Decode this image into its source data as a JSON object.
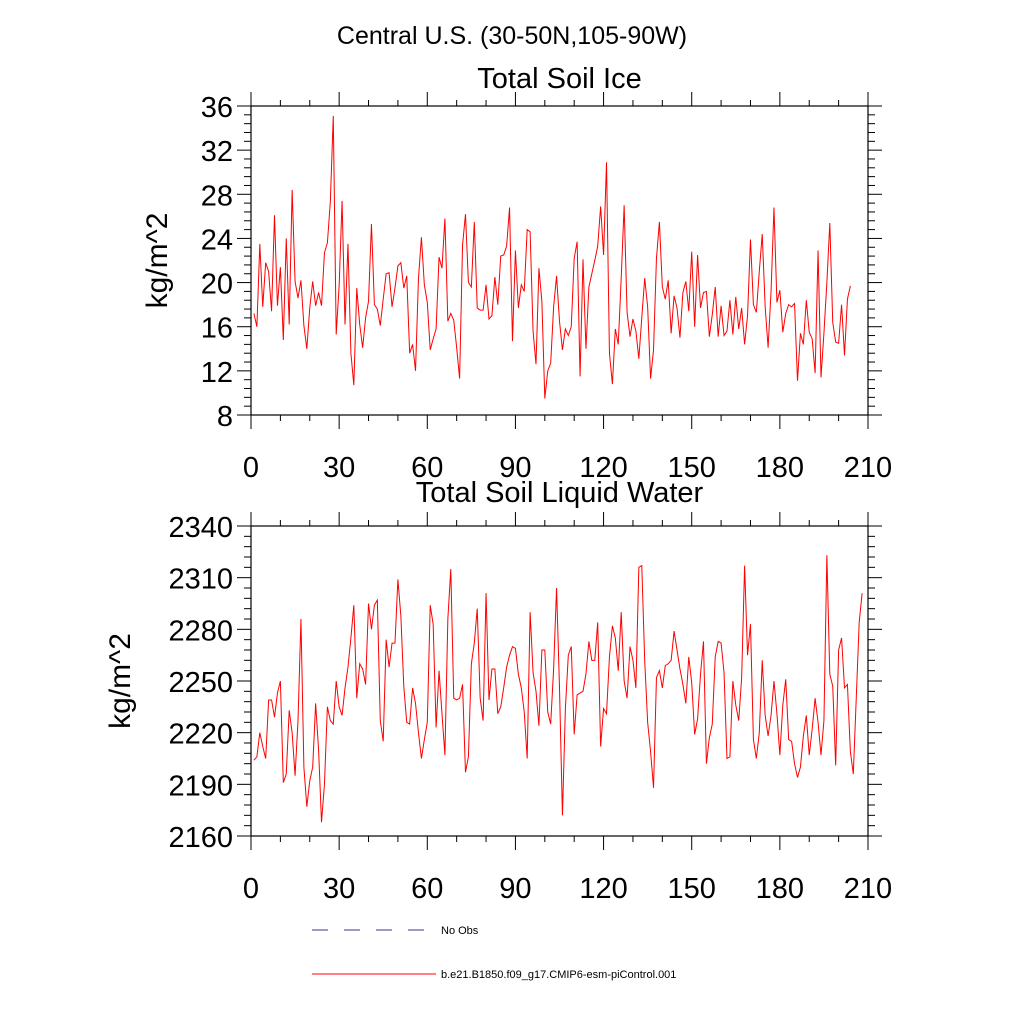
{
  "figure": {
    "suptitle": "Central U.S. (30-50N,105-90W)"
  },
  "chart_data": [
    {
      "type": "line",
      "title": "Total Soil Ice",
      "xlabel": "",
      "ylabel": "kg/m^2",
      "xlim": [
        0,
        210
      ],
      "ylim": [
        8,
        36
      ],
      "xticks": [
        0,
        30,
        60,
        90,
        120,
        150,
        180,
        210
      ],
      "yticks": [
        8,
        12,
        16,
        20,
        24,
        28,
        32,
        36
      ],
      "xtick_labels": [
        "0",
        "30",
        "60",
        "90",
        "120",
        "150",
        "180",
        "210"
      ],
      "ytick_labels": [
        "8",
        "12",
        "16",
        "20",
        "24",
        "28",
        "32",
        "36"
      ],
      "grid": false,
      "color": "#ff0000",
      "x_start": 1,
      "values": [
        17.2,
        16,
        23.5,
        17.8,
        21.8,
        21,
        17.4,
        26.1,
        17.9,
        21.4,
        14.8,
        24,
        16.2,
        28.4,
        20.1,
        18.6,
        20.2,
        16.1,
        14,
        17.7,
        20.1,
        17.9,
        19.1,
        17.9,
        22.7,
        23.6,
        27.3,
        35.1,
        15.3,
        19.7,
        27.4,
        16.2,
        23.5,
        13.6,
        10.7,
        19.5,
        16.2,
        14.1,
        16.8,
        18.3,
        25.3,
        18,
        17.6,
        16.1,
        18.5,
        20.8,
        20.9,
        17.8,
        19.5,
        21.5,
        21.8,
        19.5,
        20.6,
        13.6,
        14.4,
        12,
        20.4,
        24.1,
        19.8,
        18.2,
        13.9,
        14.9,
        15.8,
        22.3,
        21.3,
        25.8,
        16.5,
        17.2,
        16.6,
        14.1,
        11.3,
        23.4,
        26.2,
        20,
        19.6,
        25.5,
        17.7,
        17.5,
        17.5,
        19.8,
        16.7,
        17,
        20.5,
        18,
        22.4,
        22.5,
        23.3,
        26.8,
        14.7,
        22.9,
        17.7,
        19.8,
        19.2,
        24.8,
        24.6,
        15.6,
        12.6,
        21.3,
        18.3,
        9.5,
        12,
        12.7,
        17.8,
        20.6,
        16.5,
        13.9,
        15.8,
        15.2,
        16,
        22.2,
        23.7,
        11.5,
        22.1,
        14,
        19.6,
        20.8,
        22,
        23.3,
        26.9,
        22.5,
        30.9,
        13.6,
        10.8,
        15.8,
        14.4,
        20.4,
        27,
        17.3,
        15.1,
        16.7,
        15.6,
        13.1,
        16.8,
        20.4,
        17.8,
        11.3,
        13.9,
        22.2,
        25.5,
        19.6,
        18.5,
        20.2,
        15.4,
        18.8,
        17.7,
        15,
        19.1,
        20.1,
        17.4,
        22.8,
        16,
        22.5,
        17.7,
        19.1,
        19.2,
        15.1,
        17.1,
        19.6,
        15.1,
        17.9,
        15.2,
        15.6,
        18.4,
        15.3,
        18.7,
        15.8,
        17.7,
        14.4,
        17,
        23.9,
        18,
        17.3,
        21,
        24.4,
        17.8,
        14.1,
        19.2,
        26.8,
        18.2,
        19.3,
        15.5,
        17.2,
        18,
        17.8,
        18.1,
        11.1,
        15.4,
        14.4,
        18.4,
        15.5,
        14.9,
        11.8,
        22.9,
        11.4,
        15.4,
        20,
        25.4,
        16.4,
        14.6,
        14.5,
        18,
        13.4,
        18.5,
        19.7
      ]
    },
    {
      "type": "line",
      "title": "Total Soil Liquid Water",
      "xlabel": "",
      "ylabel": "kg/m^2",
      "xlim": [
        0,
        210
      ],
      "ylim": [
        2160,
        2340
      ],
      "xticks": [
        0,
        30,
        60,
        90,
        120,
        150,
        180,
        210
      ],
      "yticks": [
        2160,
        2190,
        2220,
        2250,
        2280,
        2310,
        2340
      ],
      "xtick_labels": [
        "0",
        "30",
        "60",
        "90",
        "120",
        "150",
        "180",
        "210"
      ],
      "ytick_labels": [
        "2160",
        "2190",
        "2220",
        "2250",
        "2280",
        "2310",
        "2340"
      ],
      "grid": false,
      "color": "#ff0000",
      "x_start": 1,
      "values": [
        2204,
        2206,
        2220,
        2212,
        2205,
        2239,
        2239,
        2229,
        2243,
        2250,
        2191,
        2196,
        2233,
        2220,
        2195,
        2227,
        2286,
        2200,
        2177,
        2192,
        2200,
        2237,
        2210,
        2168,
        2190,
        2235,
        2227,
        2225,
        2250,
        2235,
        2230,
        2246,
        2258,
        2275,
        2294,
        2240,
        2260,
        2257,
        2248,
        2295,
        2280,
        2294,
        2297,
        2227,
        2215,
        2274,
        2258,
        2272,
        2272,
        2309,
        2288,
        2247,
        2226,
        2225,
        2246,
        2237,
        2220,
        2205,
        2216,
        2226,
        2294,
        2283,
        2223,
        2256,
        2231,
        2207,
        2286,
        2315,
        2240,
        2239,
        2240,
        2248,
        2197,
        2206,
        2260,
        2272,
        2292,
        2240,
        2227,
        2301,
        2239,
        2257,
        2257,
        2231,
        2235,
        2246,
        2258,
        2265,
        2270,
        2269,
        2254,
        2246,
        2232,
        2205,
        2290,
        2255,
        2244,
        2224,
        2268,
        2268,
        2232,
        2225,
        2257,
        2304,
        2246,
        2172,
        2234,
        2265,
        2270,
        2219,
        2242,
        2243,
        2244,
        2254,
        2273,
        2262,
        2262,
        2284,
        2212,
        2234,
        2231,
        2264,
        2282,
        2275,
        2256,
        2290,
        2250,
        2240,
        2270,
        2262,
        2246,
        2316,
        2317,
        2262,
        2226,
        2209,
        2188,
        2252,
        2256,
        2246,
        2259,
        2260,
        2262,
        2279,
        2268,
        2257,
        2248,
        2237,
        2264,
        2249,
        2219,
        2228,
        2254,
        2273,
        2202,
        2217,
        2225,
        2264,
        2273,
        2272,
        2255,
        2205,
        2206,
        2250,
        2236,
        2227,
        2252,
        2317,
        2265,
        2283,
        2216,
        2205,
        2220,
        2262,
        2230,
        2218,
        2230,
        2250,
        2231,
        2207,
        2236,
        2251,
        2216,
        2215,
        2202,
        2194,
        2200,
        2218,
        2230,
        2207,
        2222,
        2240,
        2226,
        2207,
        2227,
        2323,
        2254,
        2247,
        2201,
        2268,
        2275,
        2246,
        2248,
        2209,
        2196,
        2240,
        2284,
        2301
      ]
    }
  ],
  "legend": {
    "entries": [
      {
        "label": "No Obs",
        "color": "#333399",
        "style": "dashed"
      },
      {
        "label": "b.e21.B1850.f09_g17.CMIP6-esm-piControl.001",
        "color": "#ff0000",
        "style": "solid"
      }
    ]
  }
}
